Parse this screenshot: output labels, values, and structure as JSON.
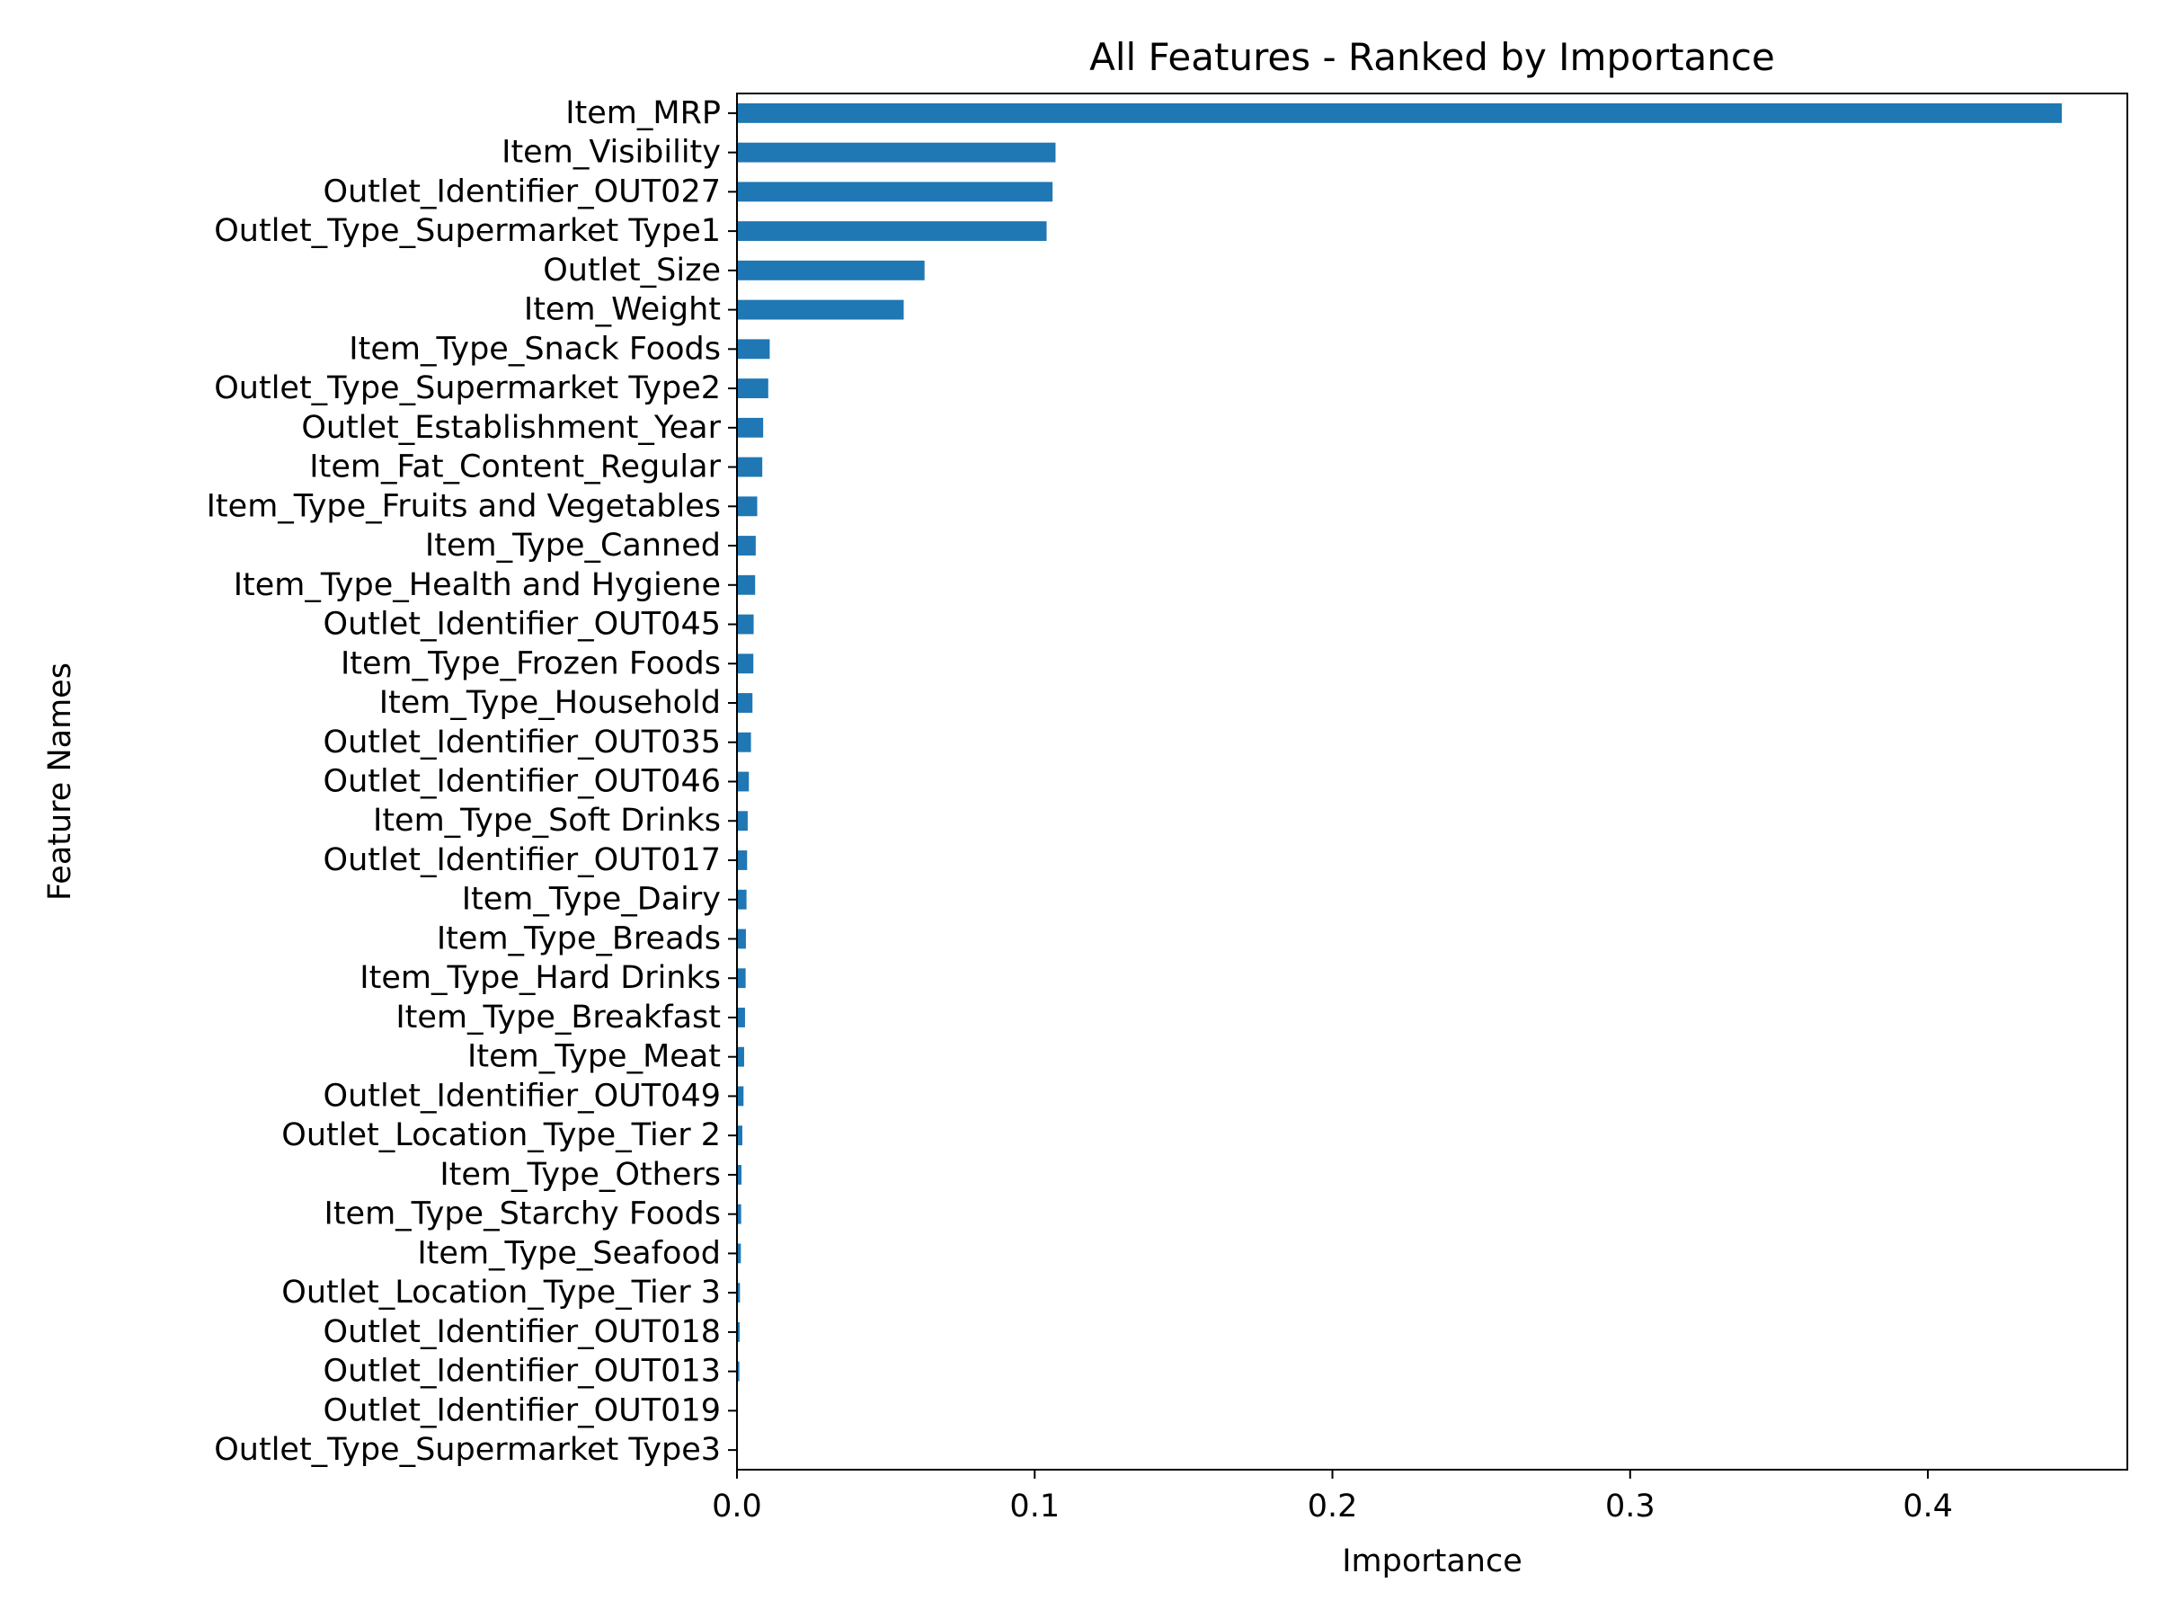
{
  "chart_data": {
    "type": "bar",
    "orientation": "horizontal",
    "title": "All Features - Ranked by Importance",
    "xlabel": "Importance",
    "ylabel": "Feature Names",
    "xlim": [
      0,
      0.467
    ],
    "xticks": [
      0.0,
      0.1,
      0.2,
      0.3,
      0.4
    ],
    "xtick_labels": [
      "0.0",
      "0.1",
      "0.2",
      "0.3",
      "0.4"
    ],
    "grid": false,
    "legend": "none",
    "bar_color": "#1f77b4",
    "categories": [
      "Item_MRP",
      "Item_Visibility",
      "Outlet_Identifier_OUT027",
      "Outlet_Type_Supermarket Type1",
      "Outlet_Size",
      "Item_Weight",
      "Item_Type_Snack Foods",
      "Outlet_Type_Supermarket Type2",
      "Outlet_Establishment_Year",
      "Item_Fat_Content_Regular",
      "Item_Type_Fruits and Vegetables",
      "Item_Type_Canned",
      "Item_Type_Health and Hygiene",
      "Outlet_Identifier_OUT045",
      "Item_Type_Frozen Foods",
      "Item_Type_Household",
      "Outlet_Identifier_OUT035",
      "Outlet_Identifier_OUT046",
      "Item_Type_Soft Drinks",
      "Outlet_Identifier_OUT017",
      "Item_Type_Dairy",
      "Item_Type_Breads",
      "Item_Type_Hard Drinks",
      "Item_Type_Breakfast",
      "Item_Type_Meat",
      "Outlet_Identifier_OUT049",
      "Outlet_Location_Type_Tier 2",
      "Item_Type_Others",
      "Item_Type_Starchy Foods",
      "Item_Type_Seafood",
      "Outlet_Location_Type_Tier 3",
      "Outlet_Identifier_OUT018",
      "Outlet_Identifier_OUT013",
      "Outlet_Identifier_OUT019",
      "Outlet_Type_Supermarket Type3"
    ],
    "values": [
      0.445,
      0.107,
      0.106,
      0.104,
      0.063,
      0.056,
      0.011,
      0.0105,
      0.0088,
      0.0085,
      0.0068,
      0.0063,
      0.0061,
      0.0056,
      0.0055,
      0.0052,
      0.0047,
      0.004,
      0.0036,
      0.0034,
      0.0032,
      0.003,
      0.0029,
      0.0027,
      0.0024,
      0.0022,
      0.0018,
      0.0015,
      0.0014,
      0.0013,
      0.001,
      0.0009,
      0.0008,
      0.0002,
      0.0001
    ]
  }
}
